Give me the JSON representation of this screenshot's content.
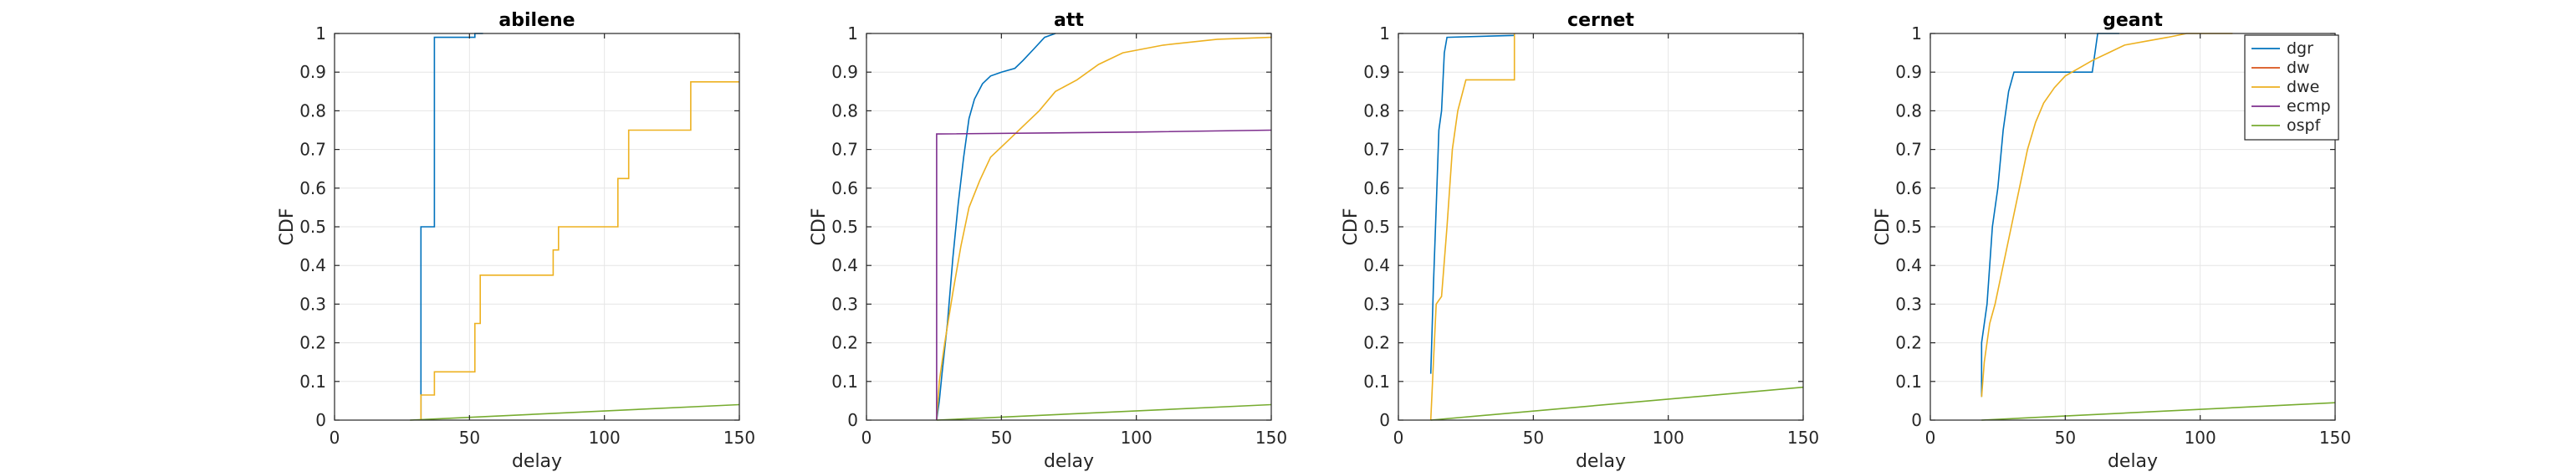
{
  "chart_data": [
    {
      "type": "line",
      "title": "abilene",
      "xlabel": "delay",
      "ylabel": "CDF",
      "xlim": [
        0,
        150
      ],
      "ylim": [
        0,
        1
      ],
      "xticks": [
        "0",
        "50",
        "100",
        "150"
      ],
      "yticks": [
        "0",
        "0.1",
        "0.2",
        "0.3",
        "0.4",
        "0.5",
        "0.6",
        "0.7",
        "0.8",
        "0.9",
        "1"
      ],
      "grid": true,
      "series": [
        {
          "name": "dgr",
          "color": "#0072BD",
          "points": [
            [
              32,
              0
            ],
            [
              32,
              0.5
            ],
            [
              37,
              0.5
            ],
            [
              37,
              0.99
            ],
            [
              52,
              0.99
            ],
            [
              52,
              1
            ],
            [
              55,
              1
            ]
          ]
        },
        {
          "name": "dw",
          "color": "#D95319",
          "points": []
        },
        {
          "name": "dwe",
          "color": "#EDB120",
          "points": [
            [
              32,
              0
            ],
            [
              32,
              0.065
            ],
            [
              37,
              0.065
            ],
            [
              37,
              0.125
            ],
            [
              52,
              0.125
            ],
            [
              52,
              0.25
            ],
            [
              54,
              0.25
            ],
            [
              54,
              0.375
            ],
            [
              81,
              0.375
            ],
            [
              81,
              0.44
            ],
            [
              83,
              0.44
            ],
            [
              83,
              0.5
            ],
            [
              105,
              0.5
            ],
            [
              105,
              0.625
            ],
            [
              109,
              0.625
            ],
            [
              109,
              0.75
            ],
            [
              132,
              0.75
            ],
            [
              132,
              0.875
            ],
            [
              150,
              0.875
            ]
          ]
        },
        {
          "name": "ecmp",
          "color": "#7E2F8E",
          "points": []
        },
        {
          "name": "ospf",
          "color": "#77AC30",
          "points": [
            [
              28,
              0
            ],
            [
              150,
              0.04
            ]
          ]
        }
      ]
    },
    {
      "type": "line",
      "title": "att",
      "xlabel": "delay",
      "ylabel": "CDF",
      "xlim": [
        0,
        150
      ],
      "ylim": [
        0,
        1
      ],
      "xticks": [
        "0",
        "50",
        "100",
        "150"
      ],
      "yticks": [
        "0",
        "0.1",
        "0.2",
        "0.3",
        "0.4",
        "0.5",
        "0.6",
        "0.7",
        "0.8",
        "0.9",
        "1"
      ],
      "grid": true,
      "series": [
        {
          "name": "dgr",
          "color": "#0072BD",
          "points": [
            [
              26,
              0
            ],
            [
              27,
              0.05
            ],
            [
              28,
              0.12
            ],
            [
              30,
              0.25
            ],
            [
              32,
              0.42
            ],
            [
              34,
              0.56
            ],
            [
              36,
              0.68
            ],
            [
              38,
              0.78
            ],
            [
              40,
              0.83
            ],
            [
              43,
              0.87
            ],
            [
              46,
              0.89
            ],
            [
              50,
              0.9
            ],
            [
              55,
              0.91
            ],
            [
              58,
              0.93
            ],
            [
              62,
              0.96
            ],
            [
              66,
              0.99
            ],
            [
              70,
              1
            ]
          ]
        },
        {
          "name": "dw",
          "color": "#D95319",
          "points": []
        },
        {
          "name": "dwe",
          "color": "#EDB120",
          "points": [
            [
              26,
              0
            ],
            [
              27,
              0.1
            ],
            [
              29,
              0.2
            ],
            [
              32,
              0.33
            ],
            [
              35,
              0.45
            ],
            [
              38,
              0.55
            ],
            [
              42,
              0.62
            ],
            [
              46,
              0.68
            ],
            [
              52,
              0.72
            ],
            [
              58,
              0.76
            ],
            [
              64,
              0.8
            ],
            [
              70,
              0.85
            ],
            [
              78,
              0.88
            ],
            [
              86,
              0.92
            ],
            [
              95,
              0.95
            ],
            [
              110,
              0.97
            ],
            [
              130,
              0.985
            ],
            [
              150,
              0.99
            ]
          ]
        },
        {
          "name": "ecmp",
          "color": "#7E2F8E",
          "points": [
            [
              26,
              0
            ],
            [
              26,
              0.74
            ],
            [
              100,
              0.745
            ],
            [
              150,
              0.75
            ]
          ]
        },
        {
          "name": "ospf",
          "color": "#77AC30",
          "points": [
            [
              26,
              0
            ],
            [
              150,
              0.04
            ]
          ]
        }
      ]
    },
    {
      "type": "line",
      "title": "cernet",
      "xlabel": "delay",
      "ylabel": "CDF",
      "xlim": [
        0,
        150
      ],
      "ylim": [
        0,
        1
      ],
      "xticks": [
        "0",
        "50",
        "100",
        "150"
      ],
      "yticks": [
        "0",
        "0.1",
        "0.2",
        "0.3",
        "0.4",
        "0.5",
        "0.6",
        "0.7",
        "0.8",
        "0.9",
        "1"
      ],
      "grid": true,
      "series": [
        {
          "name": "dgr",
          "color": "#0072BD",
          "points": [
            [
              12,
              0.12
            ],
            [
              13,
              0.35
            ],
            [
              14,
              0.55
            ],
            [
              15,
              0.75
            ],
            [
              16,
              0.8
            ],
            [
              17,
              0.95
            ],
            [
              18,
              0.99
            ],
            [
              43,
              0.995
            ],
            [
              43,
              1
            ]
          ]
        },
        {
          "name": "dw",
          "color": "#D95319",
          "points": []
        },
        {
          "name": "dwe",
          "color": "#EDB120",
          "points": [
            [
              12,
              0
            ],
            [
              13,
              0.15
            ],
            [
              14,
              0.3
            ],
            [
              16,
              0.32
            ],
            [
              18,
              0.5
            ],
            [
              20,
              0.7
            ],
            [
              22,
              0.8
            ],
            [
              25,
              0.88
            ],
            [
              43,
              0.88
            ],
            [
              43,
              1
            ]
          ]
        },
        {
          "name": "ecmp",
          "color": "#7E2F8E",
          "points": []
        },
        {
          "name": "ospf",
          "color": "#77AC30",
          "points": [
            [
              12,
              0
            ],
            [
              150,
              0.085
            ]
          ]
        }
      ]
    },
    {
      "type": "line",
      "title": "geant",
      "xlabel": "delay",
      "ylabel": "CDF",
      "xlim": [
        0,
        150
      ],
      "ylim": [
        0,
        1
      ],
      "xticks": [
        "0",
        "50",
        "100",
        "150"
      ],
      "yticks": [
        "0",
        "0.1",
        "0.2",
        "0.3",
        "0.4",
        "0.5",
        "0.6",
        "0.7",
        "0.8",
        "0.9",
        "1"
      ],
      "grid": true,
      "series": [
        {
          "name": "dgr",
          "color": "#0072BD",
          "points": [
            [
              19,
              0.06
            ],
            [
              19,
              0.2
            ],
            [
              21,
              0.3
            ],
            [
              23,
              0.5
            ],
            [
              25,
              0.6
            ],
            [
              27,
              0.75
            ],
            [
              29,
              0.85
            ],
            [
              31,
              0.9
            ],
            [
              60,
              0.9
            ],
            [
              62,
              1
            ],
            [
              70,
              1
            ]
          ]
        },
        {
          "name": "dw",
          "color": "#D95319",
          "points": []
        },
        {
          "name": "dwe",
          "color": "#EDB120",
          "points": [
            [
              19,
              0.06
            ],
            [
              20,
              0.15
            ],
            [
              22,
              0.25
            ],
            [
              24,
              0.3
            ],
            [
              27,
              0.4
            ],
            [
              30,
              0.5
            ],
            [
              33,
              0.6
            ],
            [
              36,
              0.7
            ],
            [
              39,
              0.77
            ],
            [
              42,
              0.82
            ],
            [
              46,
              0.86
            ],
            [
              50,
              0.89
            ],
            [
              55,
              0.91
            ],
            [
              60,
              0.93
            ],
            [
              66,
              0.95
            ],
            [
              72,
              0.97
            ],
            [
              80,
              0.98
            ],
            [
              88,
              0.99
            ],
            [
              95,
              1
            ],
            [
              112,
              1
            ]
          ]
        },
        {
          "name": "ecmp",
          "color": "#7E2F8E",
          "points": []
        },
        {
          "name": "ospf",
          "color": "#77AC30",
          "points": [
            [
              19,
              0
            ],
            [
              150,
              0.045
            ]
          ]
        }
      ]
    }
  ],
  "legend": {
    "placement": "right",
    "entries": [
      {
        "name": "dgr",
        "color": "#0072BD"
      },
      {
        "name": "dw",
        "color": "#D95319"
      },
      {
        "name": "dwe",
        "color": "#EDB120"
      },
      {
        "name": "ecmp",
        "color": "#7E2F8E"
      },
      {
        "name": "ospf",
        "color": "#77AC30"
      }
    ]
  }
}
